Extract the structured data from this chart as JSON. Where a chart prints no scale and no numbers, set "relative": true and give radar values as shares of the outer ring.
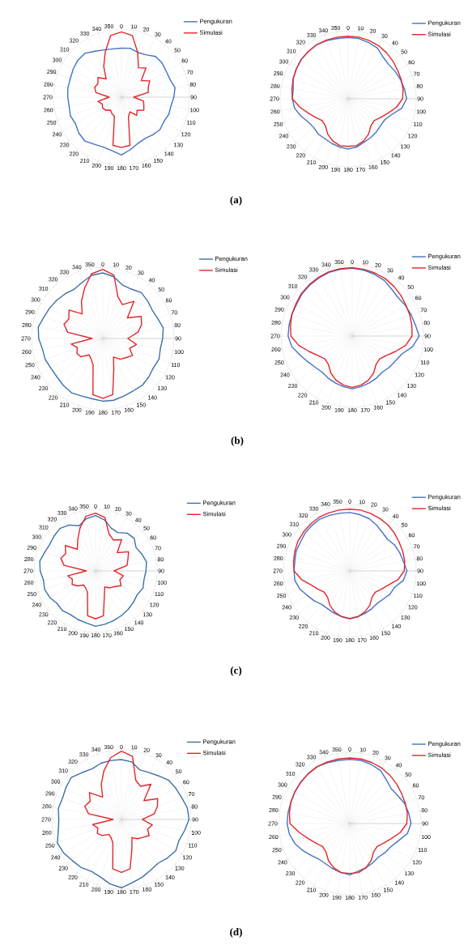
{
  "chart_data": [
    {
      "type": "radar",
      "relative": true,
      "grid": true,
      "legend": "top right",
      "categories": [
        "0",
        "10",
        "20",
        "30",
        "40",
        "50",
        "60",
        "70",
        "80",
        "90",
        "100",
        "110",
        "120",
        "130",
        "140",
        "150",
        "160",
        "170",
        "180",
        "190",
        "200",
        "210",
        "220",
        "230",
        "240",
        "250",
        "260",
        "270",
        "280",
        "290",
        "300",
        "310",
        "320",
        "330",
        "340",
        "350"
      ],
      "annotations": [
        "(a)"
      ],
      "series": [
        {
          "name": "Pengukuran",
          "color": "#4472c4",
          "values": [
            0.72,
            0.73,
            0.7,
            0.72,
            0.78,
            0.78,
            0.76,
            0.76,
            0.8,
            0.77,
            0.74,
            0.74,
            0.72,
            0.74,
            0.72,
            0.7,
            0.72,
            0.78,
            0.85,
            0.8,
            0.78,
            0.8,
            0.84,
            0.82,
            0.78,
            0.8,
            0.78,
            0.79,
            0.8,
            0.8,
            0.82,
            0.84,
            0.84,
            0.78,
            0.74,
            0.72
          ]
        },
        {
          "name": "Simulasi",
          "color": "#e3262b",
          "values": [
            0.96,
            0.92,
            0.7,
            0.5,
            0.56,
            0.38,
            0.48,
            0.42,
            0.4,
            0.18,
            0.33,
            0.35,
            0.38,
            0.3,
            0.35,
            0.25,
            0.3,
            0.72,
            0.74,
            0.72,
            0.3,
            0.28,
            0.25,
            0.3,
            0.32,
            0.3,
            0.35,
            0.18,
            0.38,
            0.42,
            0.4,
            0.45,
            0.35,
            0.52,
            0.7,
            0.92
          ]
        }
      ]
    },
    {
      "type": "radar",
      "relative": true,
      "grid": true,
      "legend": "top right",
      "categories": [
        "0",
        "10",
        "20",
        "30",
        "40",
        "50",
        "60",
        "70",
        "80",
        "90",
        "100",
        "110",
        "120",
        "130",
        "140",
        "150",
        "160",
        "170",
        "180",
        "190",
        "200",
        "210",
        "220",
        "230",
        "240",
        "250",
        "260",
        "270",
        "280",
        "290",
        "300",
        "310",
        "320",
        "330",
        "340",
        "350"
      ],
      "series": [
        {
          "name": "Pengukuran",
          "color": "#4472c4",
          "values": [
            0.9,
            0.9,
            0.88,
            0.86,
            0.8,
            0.78,
            0.8,
            0.82,
            0.84,
            0.86,
            0.8,
            0.68,
            0.62,
            0.62,
            0.64,
            0.66,
            0.68,
            0.72,
            0.74,
            0.72,
            0.7,
            0.68,
            0.68,
            0.66,
            0.68,
            0.74,
            0.8,
            0.82,
            0.82,
            0.86,
            0.88,
            0.9,
            0.91,
            0.92,
            0.91,
            0.9
          ]
        },
        {
          "name": "Simulasi",
          "color": "#e3262b",
          "values": [
            0.92,
            0.92,
            0.91,
            0.9,
            0.88,
            0.86,
            0.84,
            0.83,
            0.82,
            0.8,
            0.72,
            0.62,
            0.55,
            0.5,
            0.52,
            0.6,
            0.66,
            0.7,
            0.7,
            0.7,
            0.66,
            0.6,
            0.52,
            0.5,
            0.55,
            0.62,
            0.72,
            0.82,
            0.84,
            0.86,
            0.88,
            0.9,
            0.91,
            0.92,
            0.92,
            0.92
          ]
        }
      ]
    },
    {
      "type": "radar",
      "relative": true,
      "grid": true,
      "legend": "top right",
      "categories": [
        "0",
        "10",
        "20",
        "30",
        "40",
        "50",
        "60",
        "70",
        "80",
        "90",
        "100",
        "110",
        "120",
        "130",
        "140",
        "150",
        "160",
        "170",
        "180",
        "190",
        "200",
        "210",
        "220",
        "230",
        "240",
        "250",
        "260",
        "270",
        "280",
        "290",
        "300",
        "310",
        "320",
        "330",
        "340",
        "350"
      ],
      "annotations": [
        "(b)"
      ],
      "series": [
        {
          "name": "Pengukuran",
          "color": "#3e6fa6",
          "values": [
            0.92,
            0.88,
            0.8,
            0.8,
            0.84,
            0.82,
            0.8,
            0.82,
            0.86,
            0.84,
            0.82,
            0.84,
            0.82,
            0.84,
            0.86,
            0.85,
            0.86,
            0.88,
            0.88,
            0.86,
            0.86,
            0.88,
            0.86,
            0.84,
            0.84,
            0.86,
            0.86,
            0.9,
            0.92,
            0.88,
            0.86,
            0.84,
            0.82,
            0.8,
            0.84,
            0.9
          ]
        },
        {
          "name": "Simulasi",
          "color": "#e3262b",
          "values": [
            0.97,
            0.9,
            0.62,
            0.55,
            0.68,
            0.45,
            0.62,
            0.58,
            0.5,
            0.35,
            0.48,
            0.4,
            0.48,
            0.42,
            0.38,
            0.3,
            0.45,
            0.8,
            0.84,
            0.8,
            0.4,
            0.33,
            0.3,
            0.4,
            0.42,
            0.38,
            0.45,
            0.15,
            0.5,
            0.58,
            0.55,
            0.62,
            0.45,
            0.6,
            0.75,
            0.92
          ]
        }
      ]
    },
    {
      "type": "radar",
      "relative": true,
      "grid": true,
      "legend": "top right",
      "categories": [
        "0",
        "10",
        "20",
        "30",
        "40",
        "50",
        "60",
        "70",
        "80",
        "90",
        "100",
        "110",
        "120",
        "130",
        "140",
        "150",
        "160",
        "170",
        "180",
        "190",
        "200",
        "210",
        "220",
        "230",
        "240",
        "250",
        "260",
        "270",
        "280",
        "290",
        "300",
        "310",
        "320",
        "330",
        "340",
        "350"
      ],
      "series": [
        {
          "name": "Pengukuran",
          "color": "#4472c4",
          "values": [
            0.95,
            0.94,
            0.92,
            0.9,
            0.86,
            0.84,
            0.86,
            0.88,
            0.9,
            0.94,
            0.86,
            0.74,
            0.7,
            0.68,
            0.66,
            0.68,
            0.7,
            0.72,
            0.74,
            0.72,
            0.7,
            0.68,
            0.66,
            0.68,
            0.72,
            0.78,
            0.86,
            0.9,
            0.9,
            0.9,
            0.9,
            0.92,
            0.93,
            0.94,
            0.95,
            0.95
          ]
        },
        {
          "name": "Simulasi",
          "color": "#e3262b",
          "values": [
            0.96,
            0.95,
            0.94,
            0.93,
            0.91,
            0.89,
            0.87,
            0.86,
            0.85,
            0.84,
            0.76,
            0.64,
            0.55,
            0.5,
            0.52,
            0.6,
            0.66,
            0.7,
            0.72,
            0.7,
            0.66,
            0.6,
            0.52,
            0.5,
            0.55,
            0.64,
            0.76,
            0.86,
            0.88,
            0.9,
            0.91,
            0.93,
            0.94,
            0.95,
            0.96,
            0.96
          ]
        }
      ]
    },
    {
      "type": "radar",
      "relative": true,
      "grid": true,
      "legend": "top right",
      "categories": [
        "0",
        "10",
        "20",
        "30",
        "40",
        "50",
        "60",
        "70",
        "80",
        "90",
        "100",
        "110",
        "120",
        "130",
        "140",
        "150",
        "160",
        "170",
        "180",
        "190",
        "200",
        "210",
        "220",
        "230",
        "240",
        "250",
        "260",
        "270",
        "280",
        "290",
        "300",
        "310",
        "320",
        "330",
        "340",
        "350"
      ],
      "annotations": [
        "(c)"
      ],
      "series": [
        {
          "name": "Pengukuran",
          "color": "#3e6fa6",
          "values": [
            0.9,
            0.84,
            0.74,
            0.72,
            0.8,
            0.82,
            0.76,
            0.8,
            0.84,
            0.82,
            0.8,
            0.82,
            0.78,
            0.8,
            0.82,
            0.84,
            0.86,
            0.88,
            0.9,
            0.86,
            0.84,
            0.82,
            0.84,
            0.82,
            0.86,
            0.88,
            0.86,
            0.9,
            0.92,
            0.88,
            0.86,
            0.88,
            0.9,
            0.86,
            0.78,
            0.86
          ]
        },
        {
          "name": "Simulasi",
          "color": "#e3262b",
          "values": [
            0.94,
            0.88,
            0.64,
            0.58,
            0.66,
            0.46,
            0.62,
            0.56,
            0.52,
            0.3,
            0.46,
            0.42,
            0.48,
            0.4,
            0.36,
            0.3,
            0.42,
            0.74,
            0.78,
            0.74,
            0.38,
            0.32,
            0.3,
            0.38,
            0.44,
            0.4,
            0.46,
            0.15,
            0.52,
            0.6,
            0.56,
            0.64,
            0.46,
            0.58,
            0.74,
            0.9
          ]
        }
      ]
    },
    {
      "type": "radar",
      "relative": true,
      "grid": true,
      "legend": "top right",
      "categories": [
        "0",
        "10",
        "20",
        "30",
        "40",
        "50",
        "60",
        "70",
        "80",
        "90",
        "100",
        "110",
        "120",
        "130",
        "140",
        "150",
        "160",
        "170",
        "180",
        "190",
        "200",
        "210",
        "220",
        "230",
        "240",
        "250",
        "260",
        "270",
        "280",
        "290",
        "300",
        "310",
        "320",
        "330",
        "340",
        "350"
      ],
      "series": [
        {
          "name": "Pengukuran",
          "color": "#4472c4",
          "values": [
            0.88,
            0.86,
            0.84,
            0.8,
            0.76,
            0.74,
            0.78,
            0.8,
            0.82,
            0.86,
            0.82,
            0.72,
            0.7,
            0.66,
            0.64,
            0.66,
            0.68,
            0.7,
            0.72,
            0.7,
            0.68,
            0.66,
            0.66,
            0.7,
            0.74,
            0.8,
            0.84,
            0.84,
            0.84,
            0.86,
            0.86,
            0.88,
            0.89,
            0.9,
            0.89,
            0.88
          ]
        },
        {
          "name": "Simulasi",
          "color": "#e3262b",
          "values": [
            0.93,
            0.93,
            0.92,
            0.91,
            0.9,
            0.88,
            0.86,
            0.85,
            0.84,
            0.82,
            0.74,
            0.62,
            0.55,
            0.5,
            0.52,
            0.6,
            0.66,
            0.7,
            0.72,
            0.7,
            0.66,
            0.6,
            0.52,
            0.5,
            0.55,
            0.62,
            0.74,
            0.84,
            0.86,
            0.88,
            0.9,
            0.91,
            0.92,
            0.93,
            0.93,
            0.93
          ]
        }
      ]
    },
    {
      "type": "radar",
      "relative": true,
      "grid": true,
      "legend": "top right",
      "categories": [
        "0",
        "10",
        "20",
        "30",
        "40",
        "50",
        "60",
        "70",
        "80",
        "90",
        "100",
        "110",
        "120",
        "130",
        "140",
        "150",
        "160",
        "170",
        "180",
        "190",
        "200",
        "210",
        "220",
        "230",
        "240",
        "250",
        "260",
        "270",
        "280",
        "290",
        "300",
        "310",
        "320",
        "330",
        "340",
        "350"
      ],
      "annotations": [
        "(d)"
      ],
      "series": [
        {
          "name": "Pengukuran",
          "color": "#3e6fa6",
          "values": [
            0.86,
            0.84,
            0.76,
            0.78,
            0.82,
            0.88,
            0.9,
            0.92,
            0.96,
            0.97,
            0.92,
            0.88,
            0.9,
            0.86,
            0.82,
            0.84,
            0.88,
            0.92,
            0.98,
            0.94,
            0.88,
            0.86,
            0.9,
            0.92,
            0.96,
            0.98,
            0.92,
            0.9,
            0.92,
            0.9,
            0.92,
            0.94,
            0.88,
            0.84,
            0.86,
            0.86
          ]
        },
        {
          "name": "Simulasi",
          "color": "#e3262b",
          "values": [
            0.98,
            0.92,
            0.6,
            0.55,
            0.66,
            0.42,
            0.6,
            0.55,
            0.48,
            0.3,
            0.45,
            0.4,
            0.46,
            0.4,
            0.36,
            0.3,
            0.44,
            0.72,
            0.76,
            0.72,
            0.36,
            0.3,
            0.28,
            0.36,
            0.4,
            0.36,
            0.42,
            0.12,
            0.48,
            0.56,
            0.52,
            0.6,
            0.42,
            0.58,
            0.74,
            0.9
          ]
        }
      ]
    },
    {
      "type": "radar",
      "relative": true,
      "grid": true,
      "legend": "top right",
      "categories": [
        "0",
        "10",
        "20",
        "30",
        "40",
        "50",
        "60",
        "70",
        "80",
        "90",
        "100",
        "110",
        "120",
        "130",
        "140",
        "150",
        "160",
        "170",
        "180",
        "190",
        "200",
        "210",
        "220",
        "230",
        "240",
        "250",
        "260",
        "270",
        "280",
        "290",
        "300",
        "310",
        "320",
        "330",
        "340",
        "350"
      ],
      "series": [
        {
          "name": "Pengukuran",
          "color": "#4472c4",
          "values": [
            0.9,
            0.9,
            0.88,
            0.86,
            0.8,
            0.76,
            0.78,
            0.82,
            0.84,
            0.86,
            0.82,
            0.72,
            0.66,
            0.64,
            0.62,
            0.64,
            0.66,
            0.68,
            0.72,
            0.7,
            0.68,
            0.66,
            0.66,
            0.7,
            0.76,
            0.82,
            0.86,
            0.88,
            0.88,
            0.88,
            0.89,
            0.9,
            0.91,
            0.92,
            0.91,
            0.9
          ]
        },
        {
          "name": "Simulasi",
          "color": "#e3262b",
          "values": [
            0.92,
            0.92,
            0.91,
            0.9,
            0.88,
            0.86,
            0.84,
            0.83,
            0.82,
            0.8,
            0.72,
            0.62,
            0.55,
            0.5,
            0.52,
            0.6,
            0.66,
            0.7,
            0.7,
            0.7,
            0.66,
            0.6,
            0.52,
            0.5,
            0.55,
            0.62,
            0.72,
            0.84,
            0.86,
            0.88,
            0.89,
            0.9,
            0.91,
            0.92,
            0.92,
            0.92
          ]
        }
      ]
    }
  ]
}
